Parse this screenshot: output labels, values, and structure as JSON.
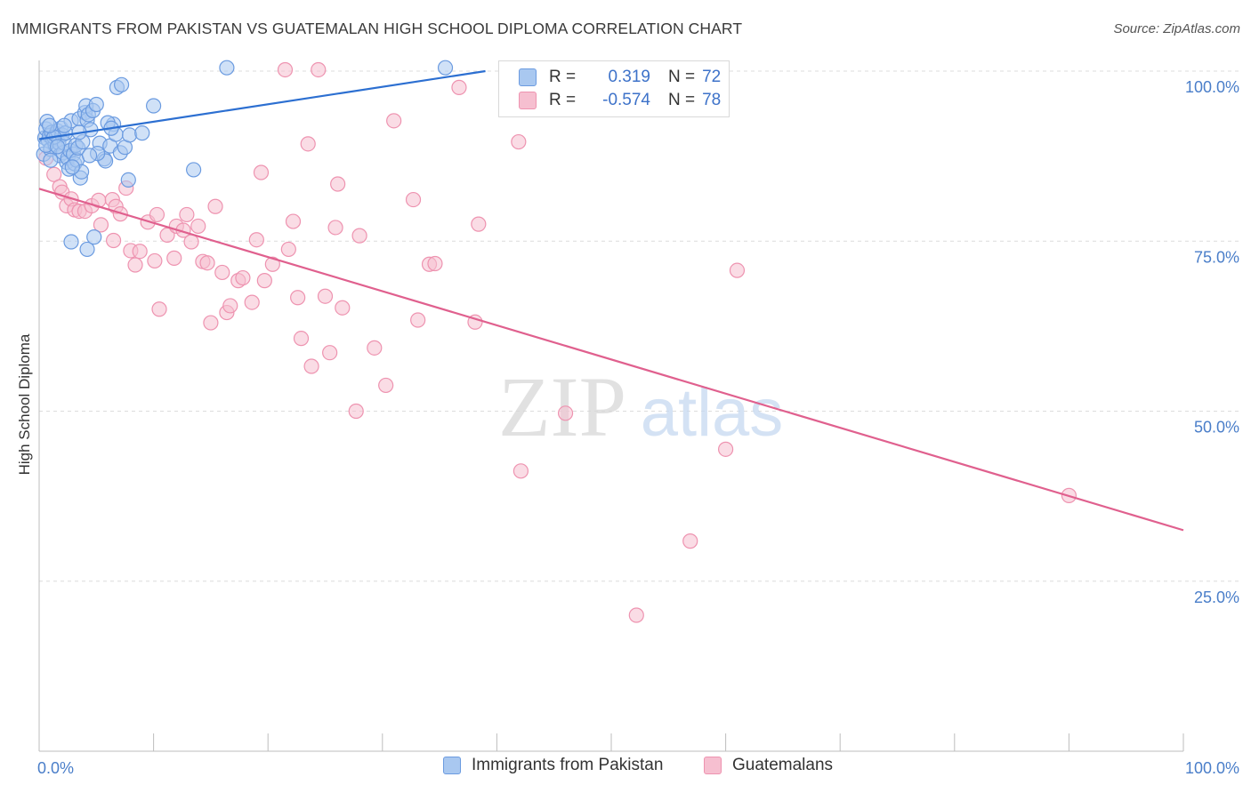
{
  "title": "IMMIGRANTS FROM PAKISTAN VS GUATEMALAN HIGH SCHOOL DIPLOMA CORRELATION CHART",
  "source": "Source: ZipAtlas.com",
  "watermark": {
    "zip": "ZIP",
    "atlas": "atlas"
  },
  "legend": {
    "series1": {
      "r_label": "R =",
      "r_value": "0.319",
      "n_label": "N =",
      "n_value": "72"
    },
    "series2": {
      "r_label": "R =",
      "r_value": "-0.574",
      "n_label": "N =",
      "n_value": "78"
    }
  },
  "colors": {
    "blue_fill": "#a9c8f0",
    "blue_stroke": "#6b9be0",
    "blue_line": "#2c6fd1",
    "pink_fill": "#f6bfd0",
    "pink_stroke": "#ee93b0",
    "pink_line": "#e0608e",
    "tick_text": "#4a7ec9"
  },
  "chart_data": {
    "type": "scatter",
    "title": "IMMIGRANTS FROM PAKISTAN VS GUATEMALAN HIGH SCHOOL DIPLOMA CORRELATION CHART",
    "xlabel": "",
    "ylabel": "High School Diploma",
    "xlim": [
      0,
      100
    ],
    "ylim": [
      0,
      102
    ],
    "x_tick_labels": [
      "0.0%",
      "100.0%"
    ],
    "y_tick_labels": [
      "100.0%",
      "75.0%",
      "50.0%",
      "25.0%"
    ],
    "y_tick_values": [
      100,
      75,
      50,
      25
    ],
    "grid": true,
    "legend_position": "top-center",
    "series": [
      {
        "name": "Immigrants from Pakistan",
        "r": 0.319,
        "n": 72,
        "trend": {
          "x0": 0,
          "y0": 90.0,
          "x1": 39,
          "y1": 100
        },
        "points": [
          [
            0.4,
            87.8
          ],
          [
            0.5,
            90.2
          ],
          [
            0.6,
            91.5
          ],
          [
            0.7,
            92.6
          ],
          [
            0.8,
            89.8
          ],
          [
            0.9,
            90.5
          ],
          [
            1.0,
            88.5
          ],
          [
            1.1,
            91.0
          ],
          [
            1.2,
            90.0
          ],
          [
            1.4,
            89.2
          ],
          [
            1.5,
            90.8
          ],
          [
            1.6,
            91.2
          ],
          [
            1.7,
            89.5
          ],
          [
            1.8,
            87.6
          ],
          [
            1.9,
            91.6
          ],
          [
            2.0,
            90.6
          ],
          [
            2.1,
            88.0
          ],
          [
            2.2,
            89.4
          ],
          [
            2.3,
            90.9
          ],
          [
            2.4,
            86.6
          ],
          [
            2.5,
            87.2
          ],
          [
            2.6,
            85.6
          ],
          [
            2.7,
            88.3
          ],
          [
            2.8,
            92.7
          ],
          [
            3.0,
            87.8
          ],
          [
            3.1,
            86.4
          ],
          [
            3.2,
            89.1
          ],
          [
            3.3,
            86.9
          ],
          [
            3.4,
            88.7
          ],
          [
            3.5,
            93.0
          ],
          [
            3.6,
            84.3
          ],
          [
            3.7,
            85.2
          ],
          [
            3.8,
            89.6
          ],
          [
            4.0,
            93.9
          ],
          [
            4.1,
            94.9
          ],
          [
            4.2,
            92.8
          ],
          [
            4.3,
            93.6
          ],
          [
            4.5,
            91.4
          ],
          [
            4.7,
            94.2
          ],
          [
            5.0,
            95.1
          ],
          [
            5.3,
            89.4
          ],
          [
            5.7,
            87.1
          ],
          [
            5.8,
            86.8
          ],
          [
            6.2,
            89.0
          ],
          [
            6.5,
            92.2
          ],
          [
            6.7,
            90.7
          ],
          [
            6.8,
            97.6
          ],
          [
            7.2,
            98.0
          ],
          [
            7.1,
            88.0
          ],
          [
            7.5,
            88.8
          ],
          [
            7.9,
            90.6
          ],
          [
            7.8,
            84.0
          ],
          [
            10.0,
            94.9
          ],
          [
            9.0,
            90.9
          ],
          [
            13.5,
            85.5
          ],
          [
            16.4,
            100.5
          ],
          [
            35.5,
            100.5
          ],
          [
            2.8,
            74.9
          ],
          [
            4.2,
            73.8
          ],
          [
            4.8,
            75.6
          ],
          [
            1.3,
            90.3
          ],
          [
            0.6,
            89.1
          ],
          [
            1.0,
            86.9
          ],
          [
            2.2,
            92.0
          ],
          [
            3.5,
            91.0
          ],
          [
            6.0,
            92.4
          ],
          [
            5.1,
            87.9
          ],
          [
            0.9,
            92.0
          ],
          [
            1.6,
            88.9
          ],
          [
            2.9,
            85.9
          ],
          [
            4.4,
            87.6
          ],
          [
            6.3,
            91.6
          ]
        ]
      },
      {
        "name": "Guatemalans",
        "r": -0.574,
        "n": 78,
        "trend": {
          "x0": 0,
          "y0": 82.7,
          "x1": 100,
          "y1": 32.5
        },
        "points": [
          [
            0.6,
            87.2
          ],
          [
            1.3,
            84.8
          ],
          [
            1.8,
            83.0
          ],
          [
            2.0,
            82.2
          ],
          [
            2.4,
            80.2
          ],
          [
            2.8,
            81.2
          ],
          [
            3.1,
            79.6
          ],
          [
            3.5,
            79.4
          ],
          [
            4.0,
            79.4
          ],
          [
            4.6,
            80.2
          ],
          [
            5.2,
            81.0
          ],
          [
            5.4,
            77.4
          ],
          [
            6.4,
            81.1
          ],
          [
            6.7,
            80.1
          ],
          [
            7.1,
            79.0
          ],
          [
            7.6,
            82.8
          ],
          [
            6.5,
            75.1
          ],
          [
            8.0,
            73.6
          ],
          [
            8.4,
            71.5
          ],
          [
            8.8,
            73.5
          ],
          [
            9.5,
            77.8
          ],
          [
            10.1,
            72.1
          ],
          [
            10.3,
            78.9
          ],
          [
            10.5,
            65.0
          ],
          [
            11.2,
            75.9
          ],
          [
            11.8,
            72.5
          ],
          [
            12.0,
            77.2
          ],
          [
            12.6,
            76.6
          ],
          [
            12.9,
            78.9
          ],
          [
            13.3,
            74.9
          ],
          [
            13.9,
            77.2
          ],
          [
            14.3,
            72.0
          ],
          [
            14.7,
            71.8
          ],
          [
            15.0,
            63.0
          ],
          [
            15.4,
            80.1
          ],
          [
            16.0,
            70.4
          ],
          [
            16.4,
            64.5
          ],
          [
            16.7,
            65.5
          ],
          [
            17.4,
            69.2
          ],
          [
            17.8,
            69.6
          ],
          [
            18.6,
            66.0
          ],
          [
            19.0,
            75.2
          ],
          [
            19.4,
            85.1
          ],
          [
            19.7,
            69.2
          ],
          [
            20.4,
            71.6
          ],
          [
            21.8,
            73.8
          ],
          [
            22.2,
            77.9
          ],
          [
            22.6,
            66.7
          ],
          [
            22.9,
            60.7
          ],
          [
            23.5,
            89.3
          ],
          [
            23.8,
            56.6
          ],
          [
            24.4,
            100.2
          ],
          [
            25.0,
            66.9
          ],
          [
            25.4,
            58.6
          ],
          [
            25.9,
            77.0
          ],
          [
            26.1,
            83.4
          ],
          [
            26.5,
            65.2
          ],
          [
            27.7,
            50.0
          ],
          [
            28.0,
            75.8
          ],
          [
            29.3,
            59.3
          ],
          [
            30.3,
            53.8
          ],
          [
            31.0,
            92.7
          ],
          [
            32.7,
            81.1
          ],
          [
            33.1,
            63.4
          ],
          [
            34.1,
            71.6
          ],
          [
            34.6,
            71.7
          ],
          [
            36.7,
            97.6
          ],
          [
            38.4,
            77.5
          ],
          [
            38.1,
            63.1
          ],
          [
            42.1,
            41.2
          ],
          [
            41.9,
            89.6
          ],
          [
            46.0,
            49.7
          ],
          [
            52.2,
            20.0
          ],
          [
            56.9,
            30.9
          ],
          [
            60.0,
            44.4
          ],
          [
            61.0,
            70.7
          ],
          [
            90.0,
            37.6
          ],
          [
            21.5,
            100.2
          ]
        ]
      }
    ]
  },
  "bottom_legend": {
    "series1": "Immigrants from Pakistan",
    "series2": "Guatemalans"
  }
}
